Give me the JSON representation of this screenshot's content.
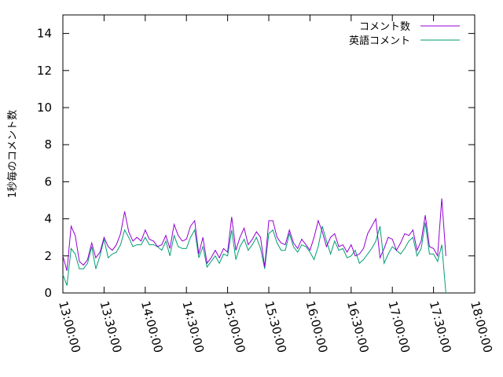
{
  "chart_data": {
    "type": "line",
    "ylabel": "1秒毎のコメント数",
    "ylim": [
      0,
      15
    ],
    "yticks": [
      0,
      2,
      4,
      6,
      8,
      10,
      12,
      14
    ],
    "xlim": [
      "13:00:00",
      "18:00:00"
    ],
    "xticks": [
      "13:00:00",
      "13:30:00",
      "14:00:00",
      "14:30:00",
      "15:00:00",
      "15:30:00",
      "16:00:00",
      "16:30:00",
      "17:00:00",
      "17:30:00",
      "18:00:00"
    ],
    "grid": false,
    "legend_position": "top-right",
    "x": [
      "13:00:00",
      "13:03:00",
      "13:06:00",
      "13:09:00",
      "13:12:00",
      "13:15:00",
      "13:18:00",
      "13:21:00",
      "13:24:00",
      "13:27:00",
      "13:30:00",
      "13:33:00",
      "13:36:00",
      "13:39:00",
      "13:42:00",
      "13:45:00",
      "13:48:00",
      "13:51:00",
      "13:54:00",
      "13:57:00",
      "14:00:00",
      "14:03:00",
      "14:06:00",
      "14:09:00",
      "14:12:00",
      "14:15:00",
      "14:18:00",
      "14:21:00",
      "14:24:00",
      "14:27:00",
      "14:30:00",
      "14:33:00",
      "14:36:00",
      "14:39:00",
      "14:42:00",
      "14:45:00",
      "14:48:00",
      "14:51:00",
      "14:54:00",
      "14:57:00",
      "15:00:00",
      "15:03:00",
      "15:06:00",
      "15:09:00",
      "15:12:00",
      "15:15:00",
      "15:18:00",
      "15:21:00",
      "15:24:00",
      "15:27:00",
      "15:30:00",
      "15:33:00",
      "15:36:00",
      "15:39:00",
      "15:42:00",
      "15:45:00",
      "15:48:00",
      "15:51:00",
      "15:54:00",
      "15:57:00",
      "16:00:00",
      "16:03:00",
      "16:06:00",
      "16:09:00",
      "16:12:00",
      "16:15:00",
      "16:18:00",
      "16:21:00",
      "16:24:00",
      "16:27:00",
      "16:30:00",
      "16:33:00",
      "16:36:00",
      "16:39:00",
      "16:42:00",
      "16:45:00",
      "16:48:00",
      "16:51:00",
      "16:54:00",
      "16:57:00",
      "17:00:00",
      "17:03:00",
      "17:06:00",
      "17:09:00",
      "17:12:00",
      "17:15:00",
      "17:18:00",
      "17:21:00",
      "17:24:00",
      "17:27:00",
      "17:30:00",
      "17:33:00",
      "17:36:00",
      "17:39:00"
    ],
    "series": [
      {
        "name": "コメント数",
        "color": "#9400d3",
        "values": [
          2.0,
          1.2,
          3.6,
          3.1,
          1.7,
          1.5,
          1.8,
          2.7,
          1.9,
          2.2,
          3.0,
          2.5,
          2.3,
          2.6,
          3.2,
          4.4,
          3.3,
          2.8,
          3.0,
          2.8,
          3.4,
          2.9,
          2.8,
          2.5,
          2.6,
          3.1,
          2.4,
          3.7,
          3.1,
          2.8,
          2.9,
          3.6,
          3.9,
          2.1,
          3.0,
          1.6,
          1.9,
          2.3,
          1.9,
          2.4,
          2.2,
          4.1,
          2.3,
          3.0,
          3.5,
          2.6,
          2.9,
          3.3,
          3.0,
          1.4,
          3.9,
          3.9,
          3.0,
          2.7,
          2.6,
          3.4,
          2.7,
          2.4,
          2.9,
          2.6,
          2.3,
          3.0,
          3.9,
          3.3,
          2.5,
          3.0,
          3.2,
          2.5,
          2.6,
          2.2,
          2.6,
          2.0,
          2.1,
          2.4,
          3.2,
          3.6,
          4.0,
          1.9,
          2.4,
          3.0,
          2.9,
          2.3,
          2.7,
          3.2,
          3.1,
          3.4,
          2.3,
          2.8,
          4.2,
          2.5,
          2.4,
          2.0,
          5.1,
          2.0
        ]
      },
      {
        "name": "英語コメント",
        "color": "#009e73",
        "values": [
          1.0,
          0.4,
          2.4,
          2.1,
          1.3,
          1.3,
          1.6,
          2.5,
          1.3,
          2.0,
          2.9,
          1.9,
          2.1,
          2.2,
          2.6,
          3.4,
          3.0,
          2.5,
          2.6,
          2.6,
          3.0,
          2.6,
          2.6,
          2.5,
          2.3,
          2.8,
          2.0,
          3.1,
          2.5,
          2.4,
          2.4,
          3.0,
          3.4,
          1.9,
          2.5,
          1.4,
          1.7,
          2.0,
          1.6,
          2.1,
          2.0,
          3.4,
          1.8,
          2.5,
          2.9,
          2.3,
          2.6,
          3.0,
          2.4,
          1.3,
          3.2,
          3.4,
          2.7,
          2.3,
          2.3,
          3.2,
          2.5,
          2.2,
          2.6,
          2.5,
          2.2,
          1.8,
          2.5,
          3.6,
          2.8,
          2.1,
          2.8,
          2.3,
          2.4,
          1.9,
          2.0,
          2.3,
          1.6,
          1.8,
          2.1,
          2.4,
          2.8,
          3.6,
          1.6,
          2.1,
          2.5,
          2.3,
          2.1,
          2.4,
          2.8,
          3.0,
          2.0,
          2.4,
          3.8,
          2.1,
          2.1,
          1.7,
          2.6,
          0
        ]
      }
    ]
  }
}
